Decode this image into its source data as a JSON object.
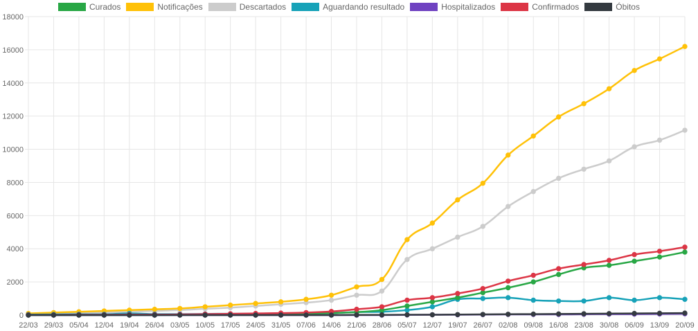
{
  "chart_data": {
    "type": "line",
    "title": "",
    "xlabel": "",
    "ylabel": "",
    "ylim": [
      0,
      18000
    ],
    "yticks": [
      0,
      2000,
      4000,
      6000,
      8000,
      10000,
      12000,
      14000,
      16000,
      18000
    ],
    "grid": true,
    "legend_position": "top",
    "categories": [
      "22/03",
      "29/03",
      "05/04",
      "12/04",
      "19/04",
      "26/04",
      "03/05",
      "10/05",
      "17/05",
      "24/05",
      "31/05",
      "07/06",
      "14/06",
      "21/06",
      "28/06",
      "05/07",
      "12/07",
      "19/07",
      "26/07",
      "02/08",
      "09/08",
      "16/08",
      "23/08",
      "30/08",
      "06/09",
      "13/09",
      "20/09"
    ],
    "series": [
      {
        "name": "Curados",
        "color": "#28a745",
        "values": [
          0,
          0,
          0,
          0,
          0,
          0,
          10,
          20,
          30,
          40,
          60,
          80,
          120,
          180,
          300,
          550,
          800,
          1050,
          1350,
          1650,
          2000,
          2450,
          2850,
          3000,
          3250,
          3500,
          3800
        ]
      },
      {
        "name": "Notificações",
        "color": "#ffc107",
        "values": [
          100,
          150,
          200,
          250,
          300,
          350,
          400,
          500,
          600,
          700,
          800,
          950,
          1200,
          1700,
          2150,
          4550,
          5550,
          6950,
          7950,
          9650,
          10800,
          11950,
          12750,
          13650,
          14750,
          15450,
          16200
        ]
      },
      {
        "name": "Descartados",
        "color": "#cccccc",
        "values": [
          50,
          80,
          120,
          160,
          200,
          250,
          300,
          380,
          450,
          550,
          650,
          750,
          900,
          1200,
          1450,
          3350,
          4000,
          4700,
          5350,
          6550,
          7450,
          8250,
          8800,
          9300,
          10150,
          10550,
          11150
        ]
      },
      {
        "name": "Aguardando resultado",
        "color": "#17a2b8",
        "values": [
          30,
          40,
          50,
          50,
          100,
          60,
          60,
          70,
          80,
          80,
          90,
          100,
          120,
          180,
          200,
          300,
          500,
          950,
          1000,
          1050,
          900,
          850,
          850,
          1050,
          900,
          1050,
          950
        ]
      },
      {
        "name": "Hospitalizados",
        "color": "#6f42c1",
        "values": [
          0,
          0,
          0,
          0,
          0,
          0,
          0,
          0,
          0,
          0,
          0,
          0,
          0,
          0,
          0,
          10,
          20,
          20,
          30,
          40,
          40,
          40,
          50,
          60,
          60,
          70,
          80
        ]
      },
      {
        "name": "Confirmados",
        "color": "#dc3545",
        "values": [
          10,
          10,
          20,
          20,
          30,
          30,
          40,
          60,
          80,
          100,
          120,
          150,
          220,
          350,
          500,
          900,
          1050,
          1300,
          1600,
          2050,
          2400,
          2800,
          3050,
          3300,
          3650,
          3850,
          4100
        ]
      },
      {
        "name": "Óbitos",
        "color": "#343a40",
        "values": [
          0,
          0,
          0,
          0,
          0,
          0,
          0,
          0,
          0,
          0,
          0,
          0,
          0,
          10,
          10,
          20,
          20,
          30,
          40,
          50,
          60,
          70,
          80,
          90,
          100,
          110,
          120
        ]
      }
    ]
  }
}
